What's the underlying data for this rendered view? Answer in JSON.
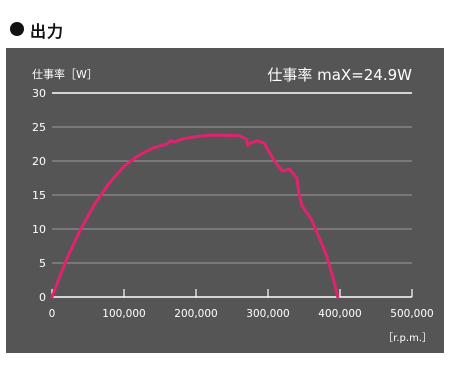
{
  "header": {
    "title": "出力"
  },
  "colors": {
    "panel_bg": "#555555",
    "grid": "#9a9a9a",
    "axis": "#ffffff",
    "curve": "#e0226f",
    "text": "#ffffff",
    "title_dot": "#111111"
  },
  "chart_data": {
    "type": "line",
    "ylabel": "仕事率［W］",
    "xlabel": "［r.p.m.］",
    "annotation": "仕事率 maX=24.9W",
    "xlim": [
      0,
      500000
    ],
    "ylim": [
      0,
      30
    ],
    "x_ticks": [
      0,
      100000,
      200000,
      300000,
      400000,
      500000
    ],
    "x_tick_labels": [
      "0",
      "100,000",
      "200,000",
      "300,000",
      "400,000",
      "500,000"
    ],
    "y_ticks": [
      0,
      5,
      10,
      15,
      20,
      25,
      30
    ],
    "y_tick_labels": [
      "0",
      "5",
      "10",
      "15",
      "20",
      "25",
      "30"
    ],
    "grid": true,
    "series": [
      {
        "x": [
          0,
          20000,
          40000,
          60000,
          80000,
          100000,
          120000,
          140000,
          160000,
          165000,
          170000,
          180000,
          200000,
          220000,
          240000,
          260000,
          270000,
          272000,
          275000,
          285000,
          295000,
          300000,
          310000,
          320000,
          330000,
          340000,
          343000,
          347000,
          350000,
          360000,
          370000,
          380000,
          390000,
          397000
        ],
        "y": [
          0,
          5.5,
          10,
          13.8,
          16.8,
          19.2,
          20.8,
          21.9,
          22.5,
          23.0,
          22.8,
          23.2,
          23.6,
          23.8,
          23.8,
          23.7,
          23.2,
          22.3,
          22.6,
          23.0,
          22.6,
          21.6,
          19.8,
          18.5,
          18.8,
          17.5,
          15.2,
          13.5,
          13.0,
          11.5,
          9.0,
          6.5,
          3.0,
          0
        ]
      }
    ]
  }
}
